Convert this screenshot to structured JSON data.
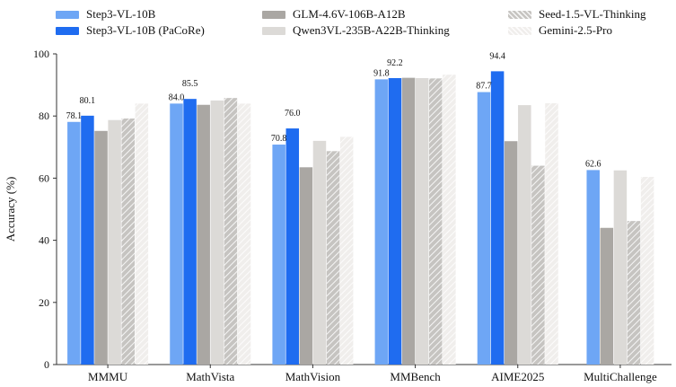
{
  "chart_data": {
    "type": "bar",
    "ylabel": "Accuracy (%)",
    "ylim": [
      0,
      100
    ],
    "yticks": [
      0,
      20,
      40,
      60,
      80,
      100
    ],
    "grid": "none",
    "legend_placement": "top",
    "categories": [
      "MMMU",
      "MathVista",
      "MathVision",
      "MMBench",
      "AIME2025",
      "MultiChallenge"
    ],
    "series": [
      {
        "name": "Step3-VL-10B",
        "color": "#6ea6f5",
        "pattern": "solid",
        "values": [
          78.1,
          84.0,
          70.8,
          91.8,
          87.7,
          62.6
        ],
        "labels": [
          "78.1",
          "84.0",
          "70.8",
          "91.8",
          "87.7",
          "62.6"
        ]
      },
      {
        "name": "Step3-VL-10B (PaCoRe)",
        "color": "#1f6cf0",
        "pattern": "solid",
        "values": [
          80.1,
          85.5,
          76.0,
          92.2,
          94.4,
          null
        ],
        "labels": [
          "80.1",
          "85.5",
          "76.0",
          "92.2",
          "94.4",
          ""
        ]
      },
      {
        "name": "GLM-4.6V-106B-A12B",
        "color": "#aaa7a3",
        "pattern": "solid",
        "values": [
          75.2,
          83.6,
          63.5,
          92.3,
          71.9,
          44.0
        ],
        "labels": [
          "",
          "",
          "",
          "",
          "",
          ""
        ]
      },
      {
        "name": "Qwen3VL-235B-A22B-Thinking",
        "color": "#dcdad7",
        "pattern": "solid",
        "values": [
          78.7,
          85.0,
          72.0,
          92.2,
          83.5,
          62.5
        ],
        "labels": [
          "",
          "",
          "",
          "",
          "",
          ""
        ]
      },
      {
        "name": "Seed-1.5-VL-Thinking",
        "color": "#c6c4c1",
        "pattern": "hatch",
        "values": [
          79.2,
          85.8,
          68.7,
          92.1,
          64.0,
          46.2
        ],
        "labels": [
          "",
          "",
          "",
          "",
          "",
          ""
        ]
      },
      {
        "name": "Gemini-2.5-Pro",
        "color": "#f0eeec",
        "pattern": "hatch",
        "values": [
          84.0,
          84.0,
          73.3,
          93.3,
          84.1,
          60.4
        ],
        "labels": [
          "",
          "",
          "",
          "",
          "",
          ""
        ]
      }
    ]
  }
}
